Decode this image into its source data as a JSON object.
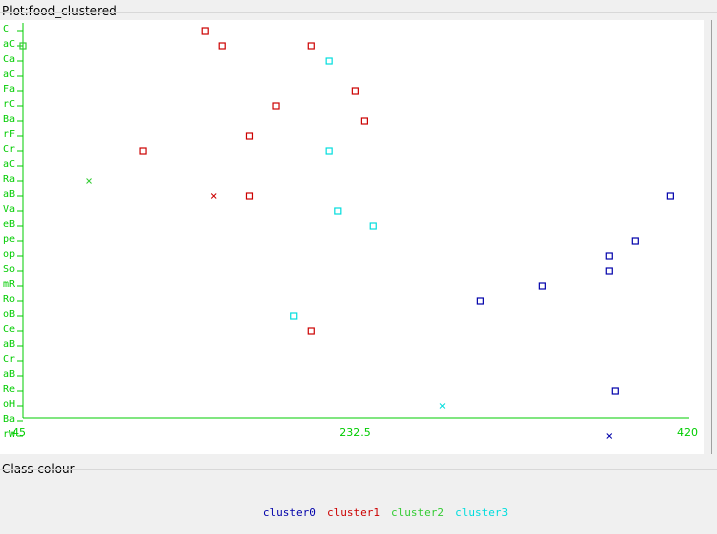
{
  "panel": {
    "title": "Plot:food_clustered"
  },
  "class_colour": {
    "title": "Class colour"
  },
  "colors": {
    "axis": "#00cc00",
    "cluster0": "#0000aa",
    "cluster1": "#cc0000",
    "cluster2": "#33cc33",
    "cluster3": "#00dddd"
  },
  "chart_data": {
    "type": "scatter",
    "x_ticks": [
      "45",
      "232.5",
      "420"
    ],
    "xlim": [
      45,
      420
    ],
    "y_categories": [
      "C",
      "aC",
      "Ca",
      "aC",
      "Fa",
      "rC",
      "Ba",
      "rF",
      "Cr",
      "aC",
      "Ra",
      "aB",
      "Va",
      "eB",
      "pe",
      "op",
      "So",
      "mR",
      "Ro",
      "oB",
      "Ce",
      "aB",
      "Cr",
      "aB",
      "Re",
      "oH",
      "Ba",
      "rW"
    ],
    "legend": [
      {
        "label": "cluster0",
        "color": "#0000aa"
      },
      {
        "label": "cluster1",
        "color": "#cc0000"
      },
      {
        "label": "cluster2",
        "color": "#33cc33"
      },
      {
        "label": "cluster3",
        "color": "#00dddd"
      }
    ],
    "series": [
      {
        "name": "cluster0",
        "marker": "square",
        "points": [
          {
            "x": 303.3,
            "y": "Ro"
          },
          {
            "x": 338.3,
            "y": "mR"
          },
          {
            "x": 376.1,
            "y": "So"
          },
          {
            "x": 376.1,
            "y": "op"
          },
          {
            "x": 390.8,
            "y": "pe"
          },
          {
            "x": 410.6,
            "y": "aB"
          },
          {
            "x": 379.5,
            "y": "Re"
          }
        ]
      },
      {
        "name": "cluster0_cross",
        "marker": "cross",
        "points": [
          {
            "x": 376.1,
            "y": "rW"
          }
        ]
      },
      {
        "name": "cluster1",
        "marker": "square",
        "points": [
          {
            "x": 147.9,
            "y": "C"
          },
          {
            "x": 207.8,
            "y": "aC"
          },
          {
            "x": 157.5,
            "y": "aC"
          },
          {
            "x": 232.7,
            "y": "Fa"
          },
          {
            "x": 187.9,
            "y": "rC"
          },
          {
            "x": 237.8,
            "y": "Ba"
          },
          {
            "x": 172.9,
            "y": "rF"
          },
          {
            "x": 112.8,
            "y": "Cr"
          },
          {
            "x": 172.9,
            "y": "aB"
          },
          {
            "x": 207.8,
            "y": "Ce"
          }
        ]
      },
      {
        "name": "cluster1_cross",
        "marker": "cross",
        "points": [
          {
            "x": 152.7,
            "y": "aB"
          }
        ]
      },
      {
        "name": "cluster2",
        "marker": "square",
        "points": [
          {
            "x": 45.0,
            "y": "aC"
          }
        ]
      },
      {
        "name": "cluster2_cross",
        "marker": "cross",
        "points": [
          {
            "x": 82.3,
            "y": "Ra"
          }
        ]
      },
      {
        "name": "cluster3",
        "marker": "square",
        "points": [
          {
            "x": 217.9,
            "y": "Ca"
          },
          {
            "x": 222.8,
            "y": "Va"
          },
          {
            "x": 242.8,
            "y": "eB"
          },
          {
            "x": 197.9,
            "y": "oB"
          },
          {
            "x": 217.9,
            "y": "Cr"
          }
        ]
      },
      {
        "name": "cluster3_cross",
        "marker": "cross",
        "points": [
          {
            "x": 281.9,
            "y": "oH"
          }
        ]
      }
    ]
  }
}
